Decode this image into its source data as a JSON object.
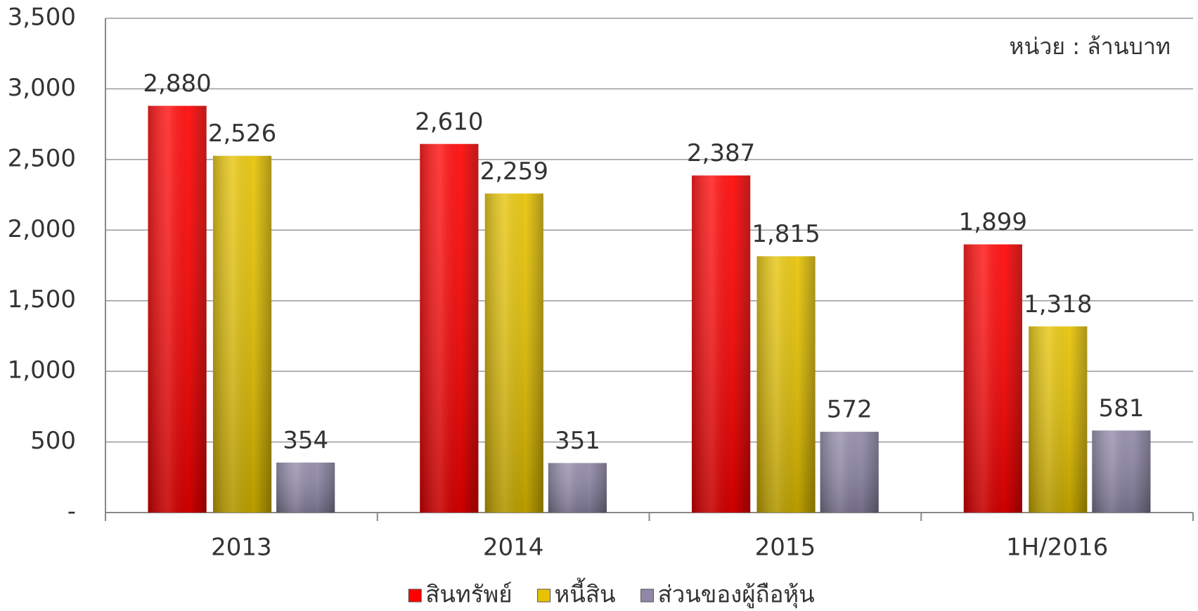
{
  "chart_data": {
    "type": "bar",
    "annotation": "หน่วย : ล้านบาท",
    "categories": [
      "2013",
      "2014",
      "2015",
      "1H/2016"
    ],
    "series": [
      {
        "name": "สินทรัพย์",
        "color": "#ff0000",
        "values": [
          2880,
          2610,
          2387,
          1899
        ],
        "value_labels": [
          "2,880",
          "2,610",
          "2,387",
          "1,899"
        ]
      },
      {
        "name": "หนี้สิน",
        "color": "#e6c200",
        "values": [
          2526,
          2259,
          1815,
          1318
        ],
        "value_labels": [
          "2,526",
          "2,259",
          "1,815",
          "1,318"
        ]
      },
      {
        "name": "ส่วนของผู้ถือหุ้น",
        "color": "#8f88a8",
        "values": [
          354,
          351,
          572,
          581
        ],
        "value_labels": [
          "354",
          "351",
          "572",
          "581"
        ]
      }
    ],
    "ylim": [
      0,
      3500
    ],
    "yticks": [
      {
        "value": 0,
        "label": "-"
      },
      500,
      {
        "value": 1000,
        "label": "1,000"
      },
      {
        "value": 1500,
        "label": "1,500"
      },
      {
        "value": 2000,
        "label": "2,000"
      },
      {
        "value": 2500,
        "label": "2,500"
      },
      {
        "value": 3000,
        "label": "3,000"
      },
      {
        "value": 3500,
        "label": "3,500"
      }
    ],
    "grid": true,
    "legend": "bottom"
  }
}
